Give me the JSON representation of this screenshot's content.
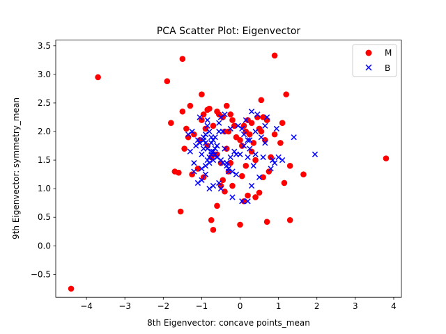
{
  "chart_data": {
    "type": "scatter",
    "title": "PCA Scatter Plot: Eigenvector",
    "xlabel": "8th Eigenvector: concave points_mean",
    "ylabel": "9th Eigenvector: symmetry_mean",
    "xlim": [
      -4.8,
      4.2
    ],
    "ylim": [
      -0.9,
      3.6
    ],
    "xticks": [
      -4,
      -3,
      -2,
      -1,
      0,
      1,
      2,
      3,
      4
    ],
    "yticks": [
      -0.5,
      0.0,
      0.5,
      1.0,
      1.5,
      2.0,
      2.5,
      3.0,
      3.5
    ],
    "grid": false,
    "legend_position": "top-right",
    "series": [
      {
        "name": "M",
        "marker": "circle",
        "color": "#ff0000",
        "x": [
          -4.4,
          -3.7,
          -1.9,
          -1.5,
          0.9,
          -1.55,
          0.7,
          1.3,
          -0.7,
          -0.75,
          -0.6,
          0.0,
          3.8,
          -0.3,
          0.1,
          -0.4,
          0.4,
          0.5,
          1.15,
          1.65,
          1.3,
          0.2,
          -0.5,
          0.55,
          0.6,
          -1.8,
          -1.4,
          -1.6,
          -1.0,
          -0.95,
          1.2,
          -0.8,
          -1.3,
          -0.2,
          0.3,
          -0.6,
          0.45,
          0.15,
          -1.7,
          -1.25,
          -0.85,
          -0.35,
          0.25,
          0.65,
          -0.45,
          0.05,
          -1.1,
          -0.1,
          0.35,
          1.05,
          -1.45,
          -0.65,
          -0.25,
          0.75,
          -1.0,
          -0.55,
          0.1,
          -0.9,
          -0.3,
          -1.2,
          -0.7,
          0.5,
          -0.4,
          0.0,
          0.2,
          -0.15,
          0.9,
          -1.35,
          -0.75,
          0.4,
          -0.5,
          0.15,
          -0.95,
          0.6,
          -0.2,
          -1.05,
          0.3,
          -0.6,
          0.8,
          -0.85,
          0.05,
          -0.35,
          1.1,
          -0.45,
          0.7,
          -1.5,
          -0.25,
          0.55
        ],
        "y": [
          -0.75,
          2.95,
          2.88,
          3.27,
          3.33,
          0.6,
          0.42,
          0.45,
          0.28,
          0.45,
          0.7,
          0.37,
          1.53,
          1.3,
          0.78,
          0.95,
          0.85,
          0.93,
          1.1,
          1.25,
          1.4,
          0.88,
          1.05,
          2.55,
          2.25,
          2.15,
          2.05,
          1.28,
          2.65,
          2.3,
          2.65,
          2.4,
          2.45,
          2.2,
          2.15,
          2.35,
          2.25,
          2.0,
          1.3,
          1.25,
          2.38,
          2.45,
          1.95,
          1.85,
          1.15,
          1.22,
          1.35,
          1.9,
          1.8,
          1.8,
          1.7,
          1.6,
          1.45,
          1.3,
          2.2,
          2.3,
          2.1,
          2.05,
          2.0,
          1.95,
          2.1,
          2.05,
          2.0,
          1.85,
          2.2,
          2.1,
          1.95,
          1.9,
          1.55,
          1.5,
          1.45,
          1.4,
          1.2,
          1.2,
          1.05,
          1.85,
          1.65,
          1.6,
          1.55,
          1.75,
          1.75,
          1.7,
          2.15,
          2.25,
          2.2,
          2.35,
          2.3,
          2.0
        ]
      },
      {
        "name": "B",
        "marker": "x",
        "color": "#0000ff",
        "x": [
          1.95,
          1.4,
          0.95,
          1.0,
          0.7,
          0.65,
          0.85,
          1.1,
          0.6,
          0.5,
          0.3,
          0.2,
          0.05,
          -0.2,
          -0.5,
          -0.8,
          -1.0,
          -1.2,
          -1.3,
          -1.35,
          -1.2,
          -1.1,
          -0.9,
          -0.7,
          -0.55,
          -0.3,
          -0.1,
          0.1,
          0.25,
          0.4,
          0.55,
          0.65,
          0.45,
          0.3,
          0.15,
          -0.05,
          -0.25,
          -0.45,
          -0.65,
          -0.85,
          -1.05,
          -1.25,
          -0.95,
          -0.75,
          -0.6,
          -0.4,
          -0.15,
          0.0,
          0.2,
          0.35,
          -0.85,
          -0.8,
          -0.75,
          -0.7,
          -0.65,
          -0.6,
          -0.9,
          -0.95,
          -1.0,
          -0.5,
          -0.45,
          -0.35,
          -0.3,
          -0.2,
          -0.1,
          -0.85,
          -0.8,
          -0.75,
          -0.7,
          -0.9,
          -1.15,
          -1.1,
          -0.55,
          -0.5,
          -0.4,
          0.05,
          0.1,
          0.2,
          -0.25,
          -0.35,
          -1.0,
          -0.9,
          -0.8,
          -0.7,
          -0.6,
          -0.65,
          -0.75,
          -0.85,
          -1.05,
          -0.95,
          -0.55,
          0.25,
          0.4,
          0.8,
          0.9
        ],
        "y": [
          1.6,
          1.9,
          2.05,
          1.55,
          2.25,
          2.1,
          1.5,
          1.5,
          1.55,
          1.2,
          1.05,
          0.78,
          0.78,
          0.85,
          1.0,
          1.0,
          1.15,
          1.45,
          1.65,
          1.95,
          1.3,
          1.1,
          1.25,
          1.05,
          1.1,
          1.3,
          1.6,
          1.75,
          1.85,
          2.0,
          1.9,
          1.8,
          2.3,
          2.35,
          2.2,
          2.1,
          2.05,
          2.0,
          1.9,
          2.2,
          2.25,
          2.0,
          1.85,
          1.8,
          1.75,
          1.7,
          1.65,
          1.6,
          1.55,
          1.4,
          1.5,
          1.55,
          1.6,
          1.65,
          1.7,
          1.75,
          1.8,
          1.7,
          1.6,
          1.5,
          1.45,
          1.4,
          1.35,
          1.3,
          1.25,
          2.1,
          2.0,
          1.9,
          1.85,
          1.95,
          1.75,
          1.85,
          2.15,
          2.25,
          2.3,
          2.05,
          1.95,
          1.85,
          1.55,
          1.45,
          1.35,
          1.4,
          1.45,
          1.5,
          1.55,
          1.6,
          1.65,
          1.7,
          1.8,
          1.9,
          2.0,
          1.7,
          1.6,
          1.35,
          1.45
        ]
      }
    ]
  }
}
